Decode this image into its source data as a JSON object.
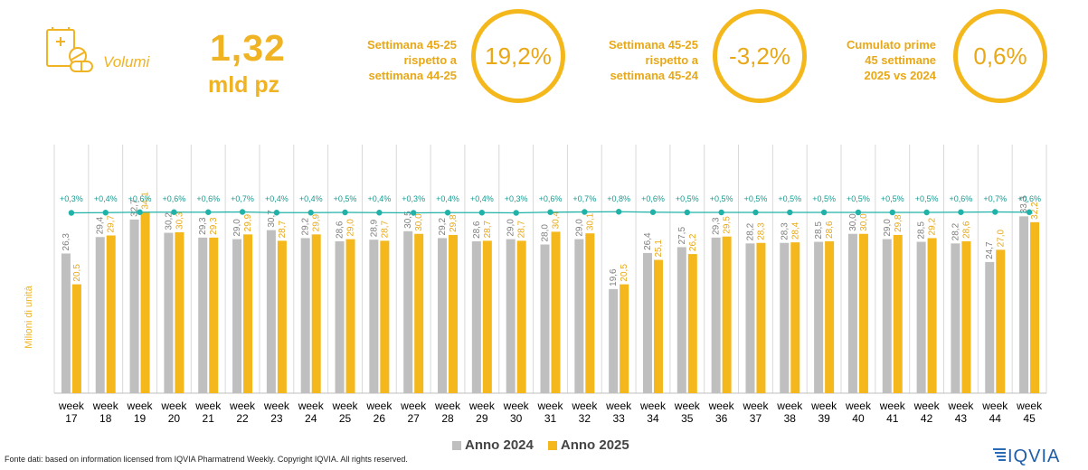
{
  "header": {
    "volumi_label": "Volumi",
    "volume_value": "1,32",
    "volume_unit": "mld pz"
  },
  "stats": [
    {
      "text_lines": [
        "Settimana 45-25",
        "rispetto a",
        "settimana 44-25"
      ],
      "value": "19,2%"
    },
    {
      "text_lines": [
        "Settimana 45-25",
        "rispetto a",
        "settimana 45-24"
      ],
      "value": "-3,2%"
    },
    {
      "text_lines": [
        "Cumulato prime",
        "45 settimane",
        "2025 vs 2024"
      ],
      "value": "0,6%"
    }
  ],
  "colors": {
    "accent": "#f4b81d",
    "series_2024": "#bfbfbf",
    "series_2025": "#f4b81d",
    "line": "#20b2a8"
  },
  "chart_data": {
    "type": "bar",
    "ylabel": "Milioni di unità",
    "categories": [
      "week 17",
      "week 18",
      "week 19",
      "week 20",
      "week 21",
      "week 22",
      "week 23",
      "week 24",
      "week 25",
      "week 26",
      "week 27",
      "week 28",
      "week 29",
      "week 30",
      "week 31",
      "week 32",
      "week 33",
      "week 34",
      "week 35",
      "week 36",
      "week 37",
      "week 38",
      "week 39",
      "week 40",
      "week 41",
      "week 42",
      "week 43",
      "week 44",
      "week 45"
    ],
    "series": [
      {
        "name": "Anno 2024",
        "labels": [
          "26,3",
          "29,4",
          "32,7",
          "30,2",
          "29,3",
          "29,0",
          "30,7",
          "29,2",
          "28,6",
          "28,9",
          "30,5",
          "29,2",
          "28,6",
          "29,0",
          "28,0",
          "29,0",
          "19,6",
          "26,4",
          "27,5",
          "29,3",
          "28,2",
          "28,3",
          "28,5",
          "30,0",
          "29,0",
          "28,5",
          "28,2",
          "24,7",
          "33,3"
        ],
        "values": [
          26.3,
          29.4,
          32.7,
          30.2,
          29.3,
          29.0,
          30.7,
          29.2,
          28.6,
          28.9,
          30.5,
          29.2,
          28.6,
          29.0,
          28.0,
          29.0,
          19.6,
          26.4,
          27.5,
          29.3,
          28.2,
          28.3,
          28.5,
          30.0,
          29.0,
          28.5,
          28.2,
          24.7,
          33.3
        ]
      },
      {
        "name": "Anno 2025",
        "labels": [
          "20,5",
          "29,7",
          "34,1",
          "30,3",
          "29,3",
          "29,9",
          "28,7",
          "29,9",
          "29,0",
          "28,7",
          "30,0",
          "29,8",
          "28,7",
          "28,7",
          "30,4",
          "30,1",
          "20,5",
          "25,1",
          "26,2",
          "29,5",
          "28,3",
          "28,4",
          "28,6",
          "30,0",
          "29,8",
          "29,2",
          "28,6",
          "27,0",
          "32,2"
        ],
        "values": [
          20.5,
          29.7,
          34.1,
          30.3,
          29.3,
          29.9,
          28.7,
          29.9,
          29.0,
          28.7,
          30.0,
          29.8,
          28.7,
          28.7,
          30.4,
          30.1,
          20.5,
          25.1,
          26.2,
          29.5,
          28.3,
          28.4,
          28.6,
          30.0,
          29.8,
          29.2,
          28.6,
          27.0,
          32.2
        ]
      }
    ],
    "line": {
      "labels": [
        "+0,3%",
        "+0,4%",
        "+0,6%",
        "+0,6%",
        "+0,6%",
        "+0,7%",
        "+0,4%",
        "+0,4%",
        "+0,5%",
        "+0,4%",
        "+0,3%",
        "+0,4%",
        "+0,4%",
        "+0,3%",
        "+0,6%",
        "+0,7%",
        "+0,8%",
        "+0,6%",
        "+0,5%",
        "+0,5%",
        "+0,5%",
        "+0,5%",
        "+0,5%",
        "+0,5%",
        "+0,5%",
        "+0,5%",
        "+0,6%",
        "+0,7%",
        "+0,6%"
      ],
      "values": [
        0.3,
        0.4,
        0.6,
        0.6,
        0.6,
        0.7,
        0.4,
        0.4,
        0.5,
        0.4,
        0.3,
        0.4,
        0.4,
        0.3,
        0.6,
        0.7,
        0.8,
        0.6,
        0.5,
        0.5,
        0.5,
        0.5,
        0.5,
        0.5,
        0.5,
        0.5,
        0.6,
        0.7,
        0.6
      ]
    },
    "ylim": [
      0,
      40
    ],
    "legend_position": "bottom"
  },
  "footer": {
    "source": "Fonte dati: based on information licensed from IQVIA Pharmatrend Weekly. Copyright IQVIA. All rights reserved.",
    "logo_text": "IQVIA"
  }
}
